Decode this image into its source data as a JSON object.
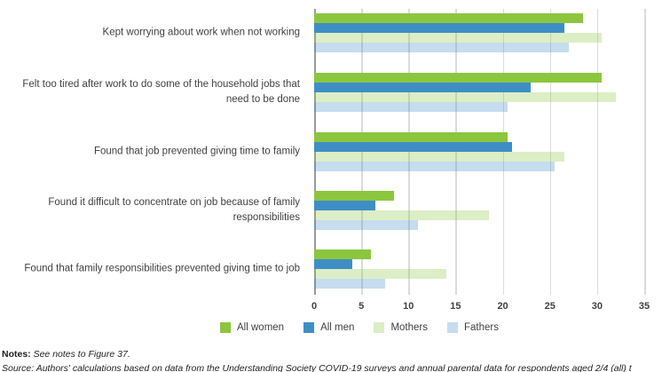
{
  "chart_data": {
    "type": "bar",
    "orientation": "horizontal",
    "title": "",
    "xlabel": "",
    "ylabel": "",
    "xlim": [
      0,
      35
    ],
    "xticks": [
      0,
      5,
      10,
      15,
      20,
      25,
      30,
      35
    ],
    "grid": "vertical gridlines only",
    "legend_position": "bottom",
    "categories": [
      "Kept worrying about work when not working",
      "Felt too tired after work to do some of the household jobs that need to be done",
      "Found that job prevented giving time to family",
      "Found it difficult to concentrate on job because of family responsibilities",
      "Found that family responsibilities prevented giving time to job"
    ],
    "series": [
      {
        "name": "All women",
        "color": "#8CC63F",
        "alpha": 1,
        "values": [
          28.5,
          30.5,
          20.5,
          8.5,
          6
        ]
      },
      {
        "name": "All men",
        "color": "#3E8EC6",
        "alpha": 1,
        "values": [
          26.5,
          23,
          21,
          6.5,
          4
        ]
      },
      {
        "name": "Mothers",
        "color": "#8CC63F",
        "alpha": 0.3,
        "values": [
          30.5,
          32,
          26.5,
          18.5,
          14
        ]
      },
      {
        "name": "Fathers",
        "color": "#3E8EC6",
        "alpha": 0.3,
        "values": [
          27,
          20.5,
          25.5,
          11,
          7.5
        ]
      }
    ]
  },
  "footer": {
    "notes_label": "Notes:",
    "notes_text": " See notes to Figure 37.",
    "source_text": "Source: Authors' calculations based on data from the Understanding Society COVID-19 surveys and annual parental data for respondents aged 2/4 (all) t"
  },
  "colors": {
    "accent_green": "#8CC63F",
    "accent_blue": "#3E8EC6",
    "pale_green_fill": "#DEEAC7",
    "pale_blue_fill": "#C6D9F0",
    "gridline": "#DBDBDB",
    "axis_line": "#9A9A9A",
    "text": "#414042"
  }
}
